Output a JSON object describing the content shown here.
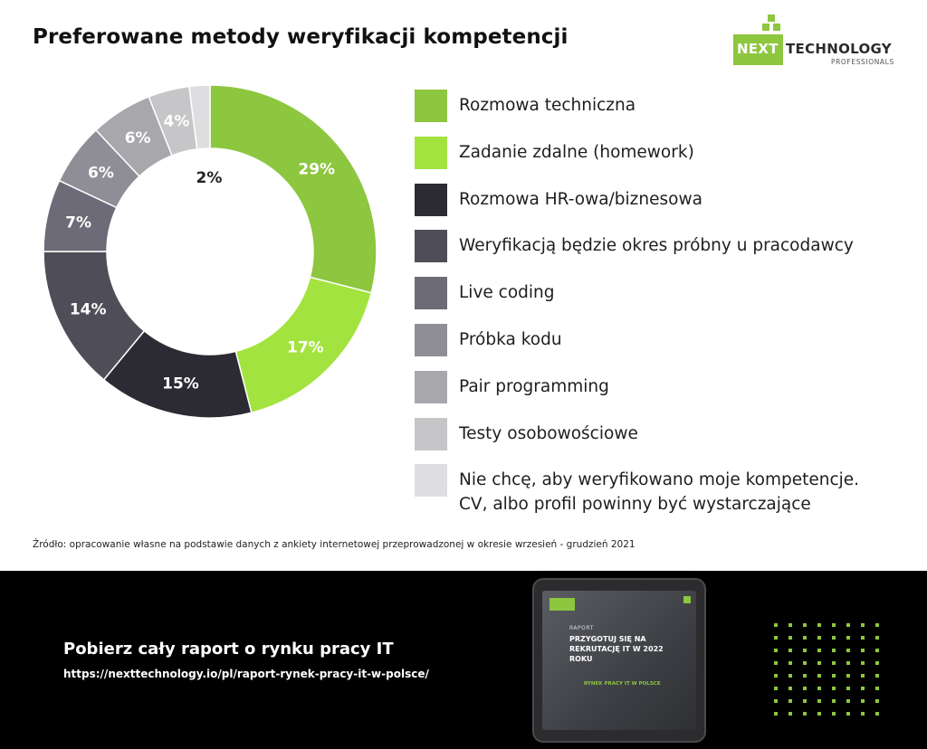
{
  "title": "Preferowane metody weryfikacji kompetencji",
  "logo": {
    "next": "NEXT",
    "technology": "TECHNOLOGY",
    "professionals": "PROFESSIONALS"
  },
  "chart_data": {
    "type": "pie",
    "style": "donut",
    "title": "Preferowane metody weryfikacji kompetencji",
    "legend_position": "right",
    "slices": [
      {
        "label": "Rozmowa techniczna",
        "value": 29,
        "display": "29%",
        "color": "#8dc63f"
      },
      {
        "label": "Zadanie zdalne (homework)",
        "value": 17,
        "display": "17%",
        "color": "#a3e33f"
      },
      {
        "label": "Rozmowa HR-owa/biznesowa",
        "value": 15,
        "display": "15%",
        "color": "#2c2b33"
      },
      {
        "label": "Weryfikacją będzie okres próbny u pracodawcy",
        "value": 14,
        "display": "14%",
        "color": "#4f4e58"
      },
      {
        "label": "Live coding",
        "value": 7,
        "display": "7%",
        "color": "#6c6b77"
      },
      {
        "label": "Próbka kodu",
        "value": 6,
        "display": "6%",
        "color": "#8f8e96"
      },
      {
        "label": "Pair programming",
        "value": 6,
        "display": "6%",
        "color": "#a8a8ac"
      },
      {
        "label": "Testy osobowościowe",
        "value": 4,
        "display": "4%",
        "color": "#c6c6c8"
      },
      {
        "label": "Nie chcę, aby weryfikowano moje kompetencje. CV, albo profil powinny być wystarczające",
        "value": 2,
        "display": "2%",
        "color": "#dedee0"
      }
    ]
  },
  "legend": {
    "items": [
      {
        "lines": [
          "Rozmowa techniczna"
        ]
      },
      {
        "lines": [
          "Zadanie zdalne (homework)"
        ]
      },
      {
        "lines": [
          "Rozmowa HR-owa/biznesowa"
        ]
      },
      {
        "lines": [
          "Weryfikacją będzie okres próbny u pracodawcy"
        ]
      },
      {
        "lines": [
          "Live coding"
        ]
      },
      {
        "lines": [
          "Próbka kodu"
        ]
      },
      {
        "lines": [
          "Pair programming"
        ]
      },
      {
        "lines": [
          "Testy osobowościowe"
        ]
      },
      {
        "lines": [
          "Nie chcę, aby weryfikowano moje kompetencje.",
          "CV, albo profil powinny być wystarczające"
        ]
      }
    ]
  },
  "source": "Źródło: opracowanie własne na podstawie danych z ankiety internetowej przeprowadzonej w okresie wrzesień - grudzień 2021",
  "footer": {
    "title": "Pobierz cały raport o rynku pracy IT",
    "url": "https://nexttechnology.io/pl/raport-rynek-pracy-it-w-polsce/",
    "tablet": {
      "logo_text": "NEXT",
      "raport": "RAPORT",
      "headline": "PRZYGOTUJ SIĘ NA REKRUTACJĘ IT W 2022 ROKU",
      "subline": "RYNEK PRACY IT W POLSCE"
    }
  }
}
